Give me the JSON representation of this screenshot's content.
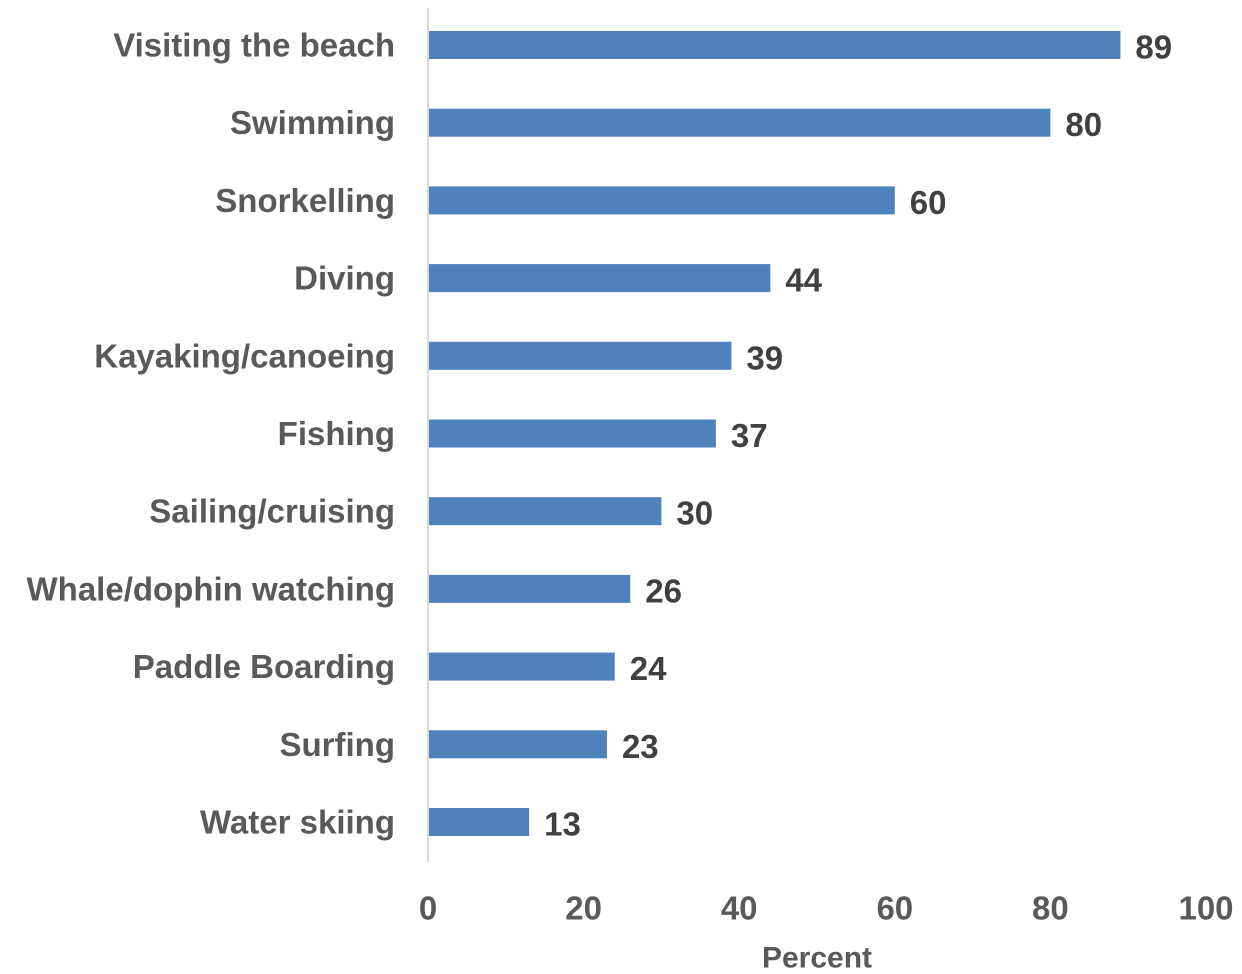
{
  "chart_data": {
    "type": "bar",
    "orientation": "horizontal",
    "categories": [
      "Visiting the beach",
      "Swimming",
      "Snorkelling",
      "Diving",
      "Kayaking/canoeing",
      "Fishing",
      "Sailing/cruising",
      "Whale/dophin watching",
      "Paddle Boarding",
      "Surfing",
      "Water skiing"
    ],
    "values": [
      89,
      80,
      60,
      44,
      39,
      37,
      30,
      26,
      24,
      23,
      13
    ],
    "title": "",
    "xlabel": "Percent",
    "ylabel": "",
    "xlim": [
      0,
      100
    ],
    "xticks": [
      0,
      20,
      40,
      60,
      80,
      100
    ],
    "grid": false,
    "data_labels": true,
    "bar_color": "#4F81BD",
    "axis_line_color": "#D9D9D9"
  }
}
